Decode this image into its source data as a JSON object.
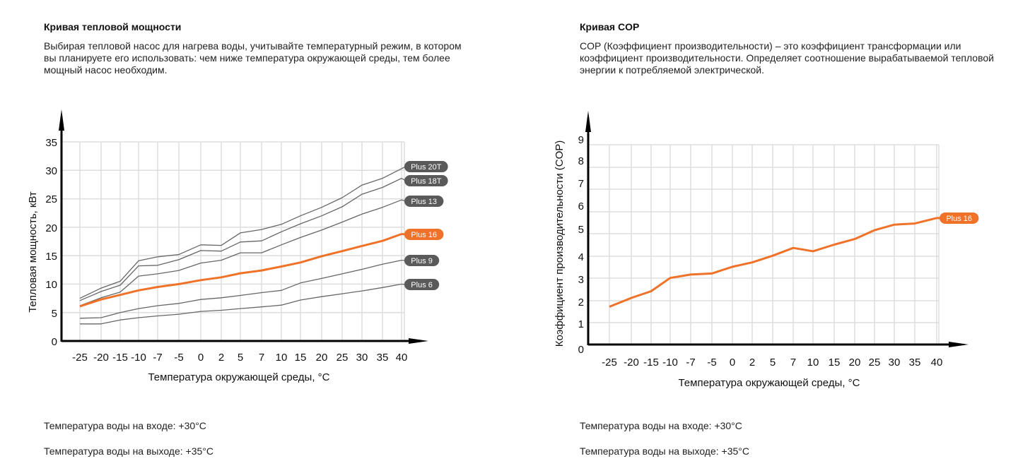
{
  "left": {
    "title": "Кривая тепловой мощности",
    "description": "Выбирая тепловой насос для нагрева воды, учитывайте температурный режим, в котором вы планируете его использовать: чем ниже температура окружающей среды, тем более мощный насос необходим.",
    "water_in": "Температура воды на входе: +30°C",
    "water_out": "Температура воды на выходе: +35°C"
  },
  "right": {
    "title": "Кривая COP",
    "description": "COP (Коэффициент производительности) – это коэффициент трансформации или коэффициент производительности. Определяет соотношение вырабатываемой тепловой энергии к потребляемой электрической.",
    "water_in": "Температура воды на входе: +30°C",
    "water_out": "Температура воды на выходе: +35°C"
  },
  "colors": {
    "highlight": "#f07228",
    "series_gray": "#666666",
    "badge_gray": "#5a5a5a",
    "grid": "#dddddd",
    "axis": "#000000"
  },
  "chart_data": [
    {
      "type": "line",
      "title": "Кривая тепловой мощности",
      "xlabel": "Температура окружающей среды, °C",
      "ylabel": "Тепловая мощность, кВт",
      "categories": [
        "-25",
        "-20",
        "-15",
        "-10",
        "-7",
        "-5",
        "0",
        "2",
        "5",
        "7",
        "10",
        "15",
        "20",
        "25",
        "30",
        "35",
        "40"
      ],
      "yticks": [
        "0",
        "5",
        "10",
        "15",
        "20",
        "25",
        "30",
        "35"
      ],
      "ylim": [
        0,
        35
      ],
      "grid": true,
      "legend": "end-of-line labels (right)",
      "series": [
        {
          "name": "Plus 20T",
          "highlight": false,
          "values": [
            7.5,
            9.3,
            10.5,
            14.1,
            14.8,
            15.2,
            16.9,
            16.8,
            19.0,
            19.6,
            20.5,
            22.0,
            23.5,
            25.2,
            27.4,
            28.6,
            30.3
          ]
        },
        {
          "name": "Plus 18T",
          "highlight": false,
          "values": [
            7.1,
            8.7,
            9.8,
            13.2,
            13.3,
            14.3,
            15.9,
            15.8,
            17.4,
            17.6,
            19.2,
            20.6,
            22.0,
            23.6,
            25.8,
            27.0,
            28.6
          ]
        },
        {
          "name": "Plus 13",
          "highlight": false,
          "values": [
            6.2,
            7.6,
            8.6,
            11.4,
            11.8,
            12.4,
            13.7,
            14.2,
            15.5,
            15.5,
            16.9,
            18.2,
            19.5,
            20.9,
            22.3,
            23.5,
            24.8
          ]
        },
        {
          "name": "Plus 16",
          "highlight": true,
          "values": [
            6.1,
            7.3,
            8.1,
            8.9,
            9.5,
            10.0,
            10.7,
            11.2,
            11.9,
            12.4,
            13.1,
            13.8,
            14.9,
            15.8,
            16.7,
            17.6,
            18.8
          ]
        },
        {
          "name": "Plus 9",
          "highlight": false,
          "values": [
            4.0,
            4.1,
            5.0,
            5.7,
            6.2,
            6.6,
            7.3,
            7.6,
            8.0,
            8.5,
            8.9,
            10.2,
            11.0,
            11.8,
            12.6,
            13.5,
            14.2
          ]
        },
        {
          "name": "Plus 6",
          "highlight": false,
          "values": [
            3.0,
            3.0,
            3.7,
            4.1,
            4.4,
            4.7,
            5.2,
            5.4,
            5.7,
            6.0,
            6.3,
            7.2,
            7.8,
            8.3,
            8.8,
            9.4,
            10.0
          ]
        }
      ]
    },
    {
      "type": "line",
      "title": "Кривая COP",
      "xlabel": "Температура окружающей среды, °C",
      "ylabel": "Коэффициент производительности (COP)",
      "categories": [
        "-25",
        "-20",
        "-15",
        "-10",
        "-7",
        "-5",
        "0",
        "2",
        "5",
        "7",
        "10",
        "15",
        "20",
        "25",
        "30",
        "35",
        "40"
      ],
      "yticks": [
        "0",
        "1",
        "2",
        "3",
        "4",
        "5",
        "6",
        "7",
        "8",
        "9"
      ],
      "ylim": [
        0,
        9
      ],
      "grid": true,
      "legend": "end-of-line label (right)",
      "series": [
        {
          "name": "Plus 16",
          "highlight": true,
          "values": [
            1.7,
            2.1,
            2.4,
            3.0,
            3.15,
            3.2,
            3.5,
            3.7,
            4.0,
            4.35,
            4.2,
            4.5,
            4.75,
            5.15,
            5.4,
            5.45,
            5.7
          ]
        }
      ]
    }
  ]
}
